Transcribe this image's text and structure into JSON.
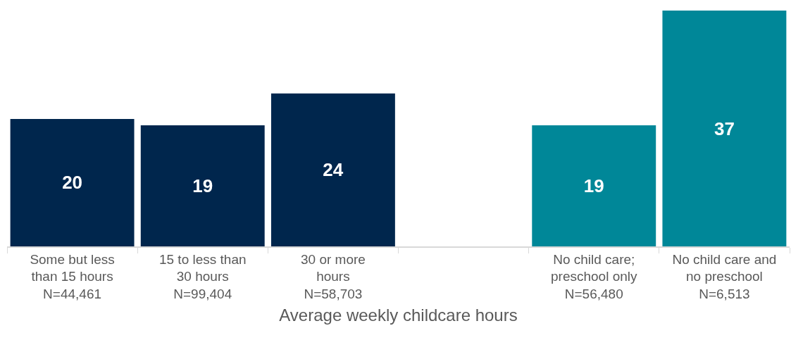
{
  "chart_data": {
    "type": "bar",
    "xlabel": "Average weekly childcare hours",
    "categories": [
      "Some but less\nthan 15 hours\nN=44,461",
      "15 to less than\n30 hours\nN=99,404",
      "30 or more\nhours\nN=58,703",
      null,
      "No child care;\npreschool only\nN=56,480",
      "No child care and\nno preschool\nN=6,513"
    ],
    "values": [
      20,
      19,
      24,
      null,
      19,
      37
    ],
    "colors": [
      "#00264d",
      "#00264d",
      "#00264d",
      "#00264d",
      "#008798",
      "#008798"
    ],
    "data_labels": true
  }
}
